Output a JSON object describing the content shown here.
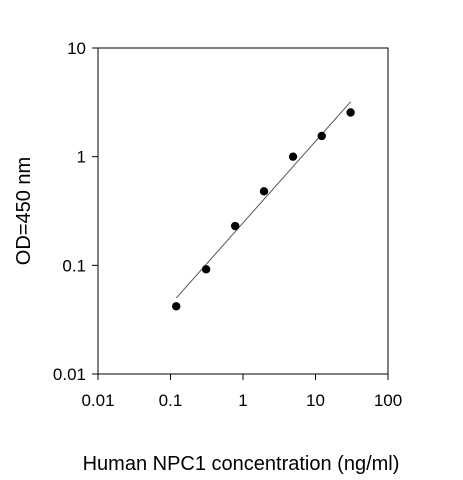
{
  "chart_data": {
    "type": "scatter",
    "title": "",
    "xlabel": "Human NPC1 concentration (ng/ml)",
    "ylabel": "OD=450 nm",
    "x_scale": "log",
    "y_scale": "log",
    "xlim": [
      0.01,
      100
    ],
    "ylim": [
      0.01,
      10
    ],
    "x_ticks": [
      "0.01",
      "0.1",
      "1",
      "10",
      "100"
    ],
    "y_ticks": [
      "0.01",
      "0.1",
      "1",
      "10"
    ],
    "grid": false,
    "legend": "none",
    "series": [
      {
        "points": [
          {
            "x": 0.12,
            "y": 0.042
          },
          {
            "x": 0.31,
            "y": 0.092
          },
          {
            "x": 0.78,
            "y": 0.23
          },
          {
            "x": 1.95,
            "y": 0.48
          },
          {
            "x": 4.9,
            "y": 1.0
          },
          {
            "x": 12.2,
            "y": 1.55
          },
          {
            "x": 30.5,
            "y": 2.55
          }
        ],
        "color": "#000000"
      }
    ],
    "fit_line": {
      "from": {
        "x": 0.12,
        "y": 0.05
      },
      "to": {
        "x": 30.5,
        "y": 3.2
      },
      "color": "#555555"
    }
  }
}
